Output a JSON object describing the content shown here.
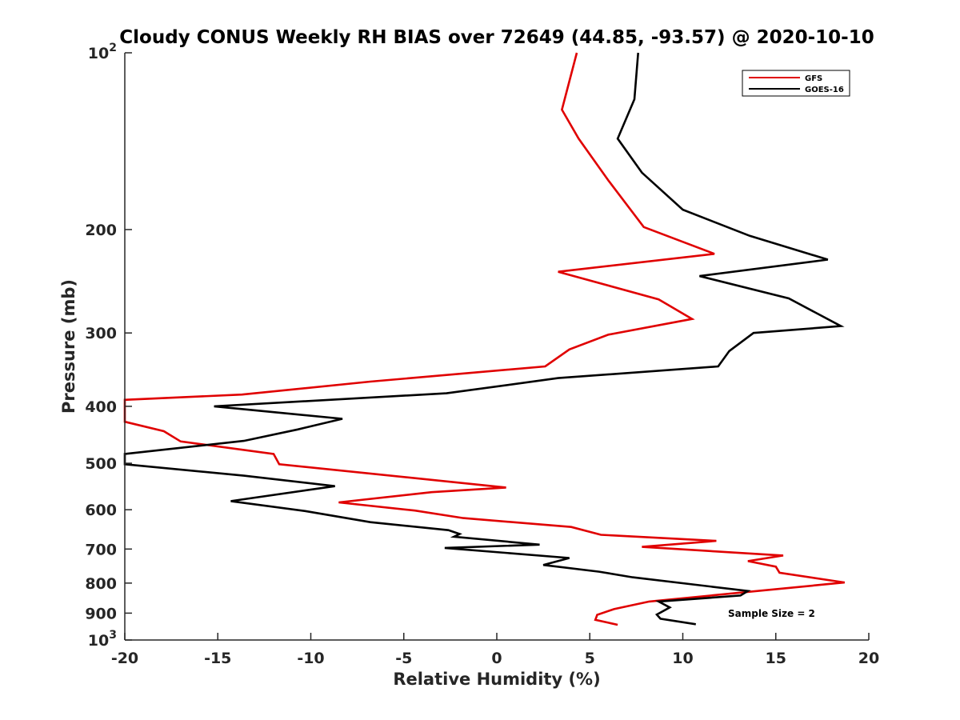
{
  "chart_data": {
    "type": "line",
    "title": "Cloudy CONUS Weekly RH BIAS over 72649 (44.85, -93.57) @ 2020-10-10",
    "xlabel": "Relative Humidity (%)",
    "ylabel": "Pressure (mb)",
    "xlim": [
      -20,
      20
    ],
    "ylim": [
      100,
      1000
    ],
    "y_scale": "log",
    "y_reversed": true,
    "x_ticks": [
      "-20",
      "-15",
      "-10",
      "-5",
      "0",
      "5",
      "10",
      "15",
      "20"
    ],
    "y_ticks": [
      {
        "value": 100,
        "base": "10",
        "exp": "2"
      },
      {
        "value": 200,
        "label": "200"
      },
      {
        "value": 300,
        "label": "300"
      },
      {
        "value": 400,
        "label": "400"
      },
      {
        "value": 500,
        "label": "500"
      },
      {
        "value": 600,
        "label": "600"
      },
      {
        "value": 700,
        "label": "700"
      },
      {
        "value": 800,
        "label": "800"
      },
      {
        "value": 900,
        "label": "900"
      },
      {
        "value": 1000,
        "base": "10",
        "exp": "3"
      }
    ],
    "grid": false,
    "legend_position": "top-right",
    "annotation": "Sample Size = 2",
    "series": [
      {
        "name": "GFS",
        "color": "#e00000",
        "points": [
          [
            4.3,
            100
          ],
          [
            3.5,
            125
          ],
          [
            4.4,
            140
          ],
          [
            6.0,
            165
          ],
          [
            7.9,
            198
          ],
          [
            11.7,
            220
          ],
          [
            3.3,
            236
          ],
          [
            8.7,
            263
          ],
          [
            10.5,
            284
          ],
          [
            6.0,
            302
          ],
          [
            3.9,
            320
          ],
          [
            2.6,
            342
          ],
          [
            -6.8,
            363
          ],
          [
            -13.7,
            382
          ],
          [
            -20.0,
            390
          ],
          [
            -20.0,
            425
          ],
          [
            -17.9,
            441
          ],
          [
            -17.0,
            459
          ],
          [
            -12.0,
            482
          ],
          [
            -11.7,
            502
          ],
          [
            0.5,
            550
          ],
          [
            -3.5,
            560
          ],
          [
            -8.5,
            583
          ],
          [
            -4.4,
            602
          ],
          [
            -1.8,
            620
          ],
          [
            4.0,
            642
          ],
          [
            5.6,
            662
          ],
          [
            11.8,
            678
          ],
          [
            7.8,
            694
          ],
          [
            15.4,
            718
          ],
          [
            13.5,
            734
          ],
          [
            15.0,
            750
          ],
          [
            15.2,
            768
          ],
          [
            18.7,
            798
          ],
          [
            8.2,
            860
          ],
          [
            6.3,
            886
          ],
          [
            5.4,
            906
          ],
          [
            5.3,
            924
          ],
          [
            6.5,
            942
          ]
        ]
      },
      {
        "name": "GOES-16",
        "color": "#000000",
        "points": [
          [
            7.6,
            100
          ],
          [
            7.4,
            120
          ],
          [
            6.5,
            140
          ],
          [
            7.8,
            160
          ],
          [
            10.0,
            185
          ],
          [
            13.6,
            205
          ],
          [
            17.8,
            225
          ],
          [
            10.9,
            240
          ],
          [
            15.7,
            262
          ],
          [
            18.5,
            292
          ],
          [
            13.8,
            300
          ],
          [
            12.5,
            322
          ],
          [
            11.9,
            342
          ],
          [
            3.3,
            358
          ],
          [
            -2.7,
            380
          ],
          [
            -15.2,
            400
          ],
          [
            -8.3,
            420
          ],
          [
            -10.7,
            438
          ],
          [
            -13.6,
            458
          ],
          [
            -20.0,
            482
          ],
          [
            -20.0,
            502
          ],
          [
            -13.6,
            525
          ],
          [
            -8.7,
            547
          ],
          [
            -14.3,
            580
          ],
          [
            -10.3,
            603
          ],
          [
            -6.8,
            630
          ],
          [
            -2.6,
            650
          ],
          [
            -2.0,
            660
          ],
          [
            -2.3,
            667
          ],
          [
            2.3,
            688
          ],
          [
            -2.8,
            697
          ],
          [
            3.9,
            725
          ],
          [
            2.5,
            745
          ],
          [
            5.5,
            765
          ],
          [
            7.3,
            782
          ],
          [
            13.5,
            825
          ],
          [
            13.1,
            840
          ],
          [
            8.7,
            860
          ],
          [
            9.3,
            880
          ],
          [
            8.6,
            905
          ],
          [
            8.8,
            920
          ],
          [
            10.7,
            940
          ]
        ]
      }
    ]
  }
}
